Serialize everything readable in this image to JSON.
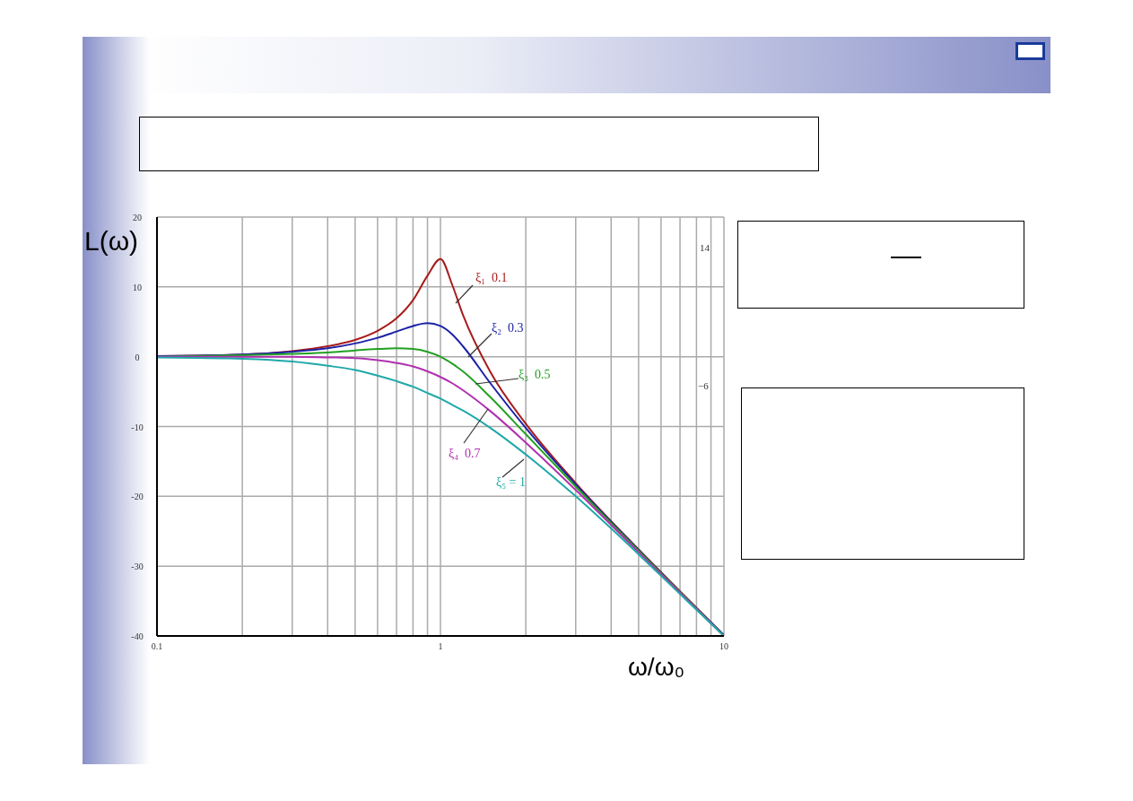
{
  "chart_data": {
    "type": "line",
    "xlabel": "ω/ω₀",
    "ylabel": "L(ω)",
    "log": "x",
    "x": [
      0.1,
      0.2,
      0.3,
      0.4,
      0.5,
      0.6,
      0.7,
      0.8,
      0.9,
      1,
      1.1,
      1.2,
      1.5,
      2,
      3,
      5,
      7,
      10
    ],
    "series": [
      {
        "name": "ξ₁  0.1",
        "color": "#a81c1c",
        "values": [
          0.1,
          0.3,
          0.8,
          1.5,
          2.4,
          3.7,
          5.5,
          8.1,
          11.6,
          14.0,
          10.3,
          6.0,
          -2.2,
          -9.6,
          -18.1,
          -27.6,
          -33.6,
          -39.9
        ]
      },
      {
        "name": "ξ₂  0.3",
        "color": "#1c22a8",
        "values": [
          0.1,
          0.3,
          0.7,
          1.2,
          1.9,
          2.7,
          3.6,
          4.4,
          4.8,
          4.4,
          3.2,
          1.5,
          -3.8,
          -10.2,
          -18.3,
          -27.7,
          -33.7,
          -39.9
        ]
      },
      {
        "name": "ξ₃  0.5",
        "color": "#22a022",
        "values": [
          0.0,
          0.2,
          0.4,
          0.6,
          0.9,
          1.1,
          1.2,
          1.1,
          0.7,
          0.0,
          -1.0,
          -2.1,
          -5.8,
          -11.1,
          -18.6,
          -27.8,
          -33.7,
          -40.0
        ]
      },
      {
        "name": "ξ₄  0.7",
        "color": "#b030b0",
        "values": [
          0.0,
          0.0,
          0.0,
          -0.1,
          -0.2,
          -0.5,
          -0.9,
          -1.4,
          -2.1,
          -2.9,
          -3.8,
          -4.8,
          -7.8,
          -12.3,
          -19.1,
          -28.0,
          -33.8,
          -40.0
        ]
      },
      {
        "name": "ξ₅ = 1",
        "color": "#20a8a8",
        "values": [
          -0.1,
          -0.3,
          -0.7,
          -1.3,
          -1.9,
          -2.7,
          -3.5,
          -4.3,
          -5.2,
          -6.0,
          -6.9,
          -7.7,
          -10.2,
          -14.0,
          -20.0,
          -28.3,
          -34.0,
          -40.0
        ]
      }
    ],
    "xlim": [
      0.1,
      10
    ],
    "xticks": [
      {
        "value": 0.1,
        "label": "0.1"
      },
      {
        "value": 0.2,
        "label": null
      },
      {
        "value": 0.3,
        "label": null
      },
      {
        "value": 0.4,
        "label": null
      },
      {
        "value": 0.5,
        "label": null
      },
      {
        "value": 0.6,
        "label": null
      },
      {
        "value": 0.7,
        "label": null
      },
      {
        "value": 0.8,
        "label": null
      },
      {
        "value": 0.9,
        "label": null
      },
      {
        "value": 1,
        "label": "1"
      },
      {
        "value": 2,
        "label": null
      },
      {
        "value": 3,
        "label": null
      },
      {
        "value": 4,
        "label": null
      },
      {
        "value": 5,
        "label": null
      },
      {
        "value": 6,
        "label": null
      },
      {
        "value": 7,
        "label": null
      },
      {
        "value": 8,
        "label": null
      },
      {
        "value": 9,
        "label": null
      },
      {
        "value": 10,
        "label": "10"
      }
    ],
    "ylim": [
      -40,
      20
    ],
    "yticks": [
      -40,
      -30,
      -20,
      -10,
      0,
      10,
      20
    ],
    "grid": true,
    "legend": false,
    "marker": "none",
    "line_style": "solid",
    "annotations": [
      "14",
      "−6"
    ]
  }
}
